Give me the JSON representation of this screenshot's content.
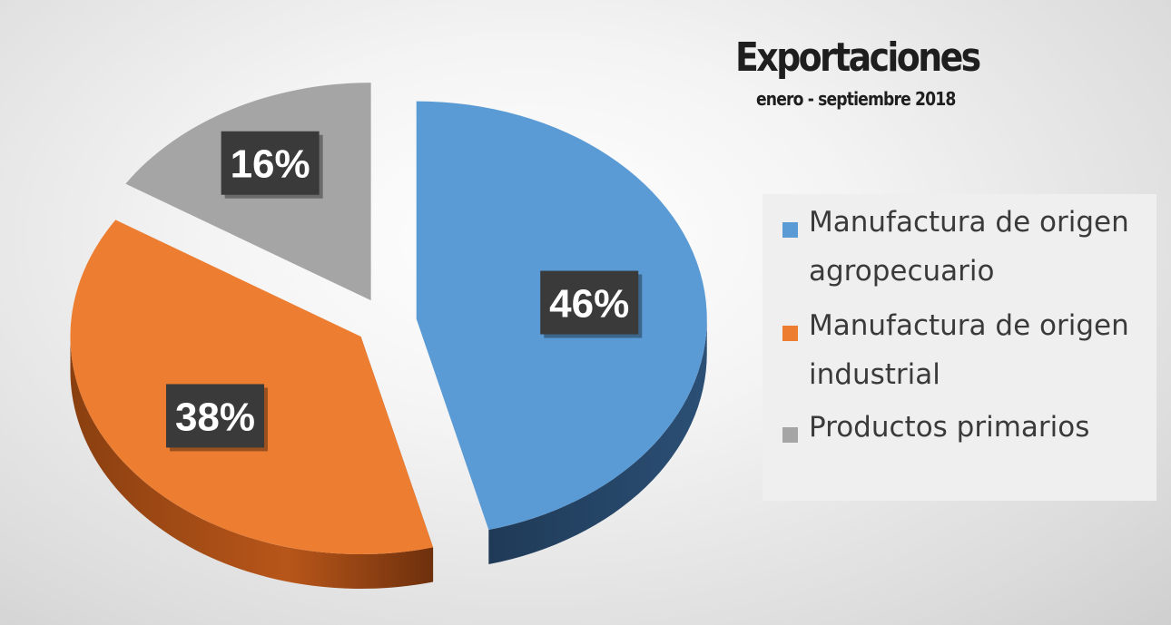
{
  "chart_data": {
    "type": "pie",
    "title": "Exportaciones",
    "subtitle": "enero - septiembre 2018",
    "categories": [
      "Manufactura de origen agropecuario",
      "Manufactura de origen industrial",
      "Productos primarios"
    ],
    "values": [
      46,
      38,
      16
    ],
    "data_labels": [
      "46%",
      "38%",
      "16%"
    ],
    "colors": [
      "#5b9bd5",
      "#ed7d31",
      "#a5a5a5"
    ],
    "legend_position": "right",
    "style": "3d-exploded"
  }
}
